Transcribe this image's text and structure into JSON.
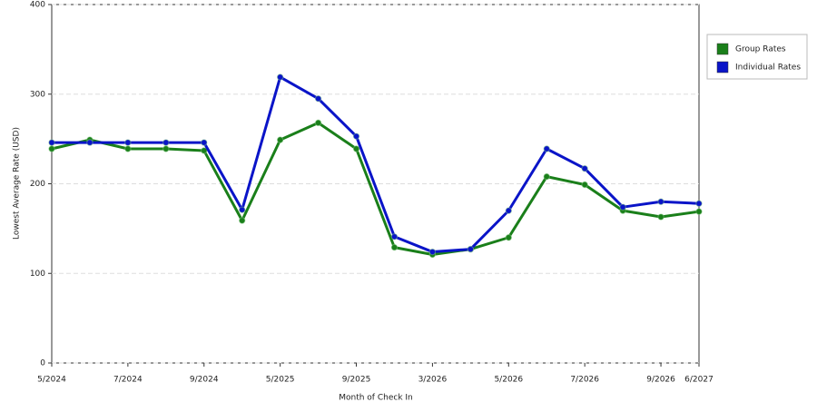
{
  "chart_data": {
    "type": "line",
    "x_label": "Month of Check In",
    "y_label": "Lowest Average Rate (USD)",
    "categories": [
      "5/2024",
      null,
      "7/2024",
      null,
      "9/2024",
      null,
      "5/2025",
      null,
      "9/2025",
      null,
      "3/2026",
      null,
      "5/2026",
      null,
      "7/2026",
      null,
      "9/2026",
      "6/2027"
    ],
    "series": [
      {
        "name": "Group Rates",
        "color": "#1a7f1a",
        "values": [
          239,
          249,
          239,
          239,
          237,
          159,
          249,
          268,
          239,
          129,
          121,
          127,
          140,
          208,
          199,
          170,
          163,
          169
        ]
      },
      {
        "name": "Individual Rates",
        "color": "#0a14c8",
        "values": [
          246,
          246,
          246,
          246,
          246,
          171,
          319,
          295,
          253,
          141,
          124,
          127,
          170,
          239,
          217,
          174,
          180,
          178
        ]
      }
    ],
    "ylim": [
      0,
      400
    ],
    "yticks": [
      0,
      100,
      200,
      300,
      400
    ],
    "grid": true,
    "legend": "right"
  }
}
